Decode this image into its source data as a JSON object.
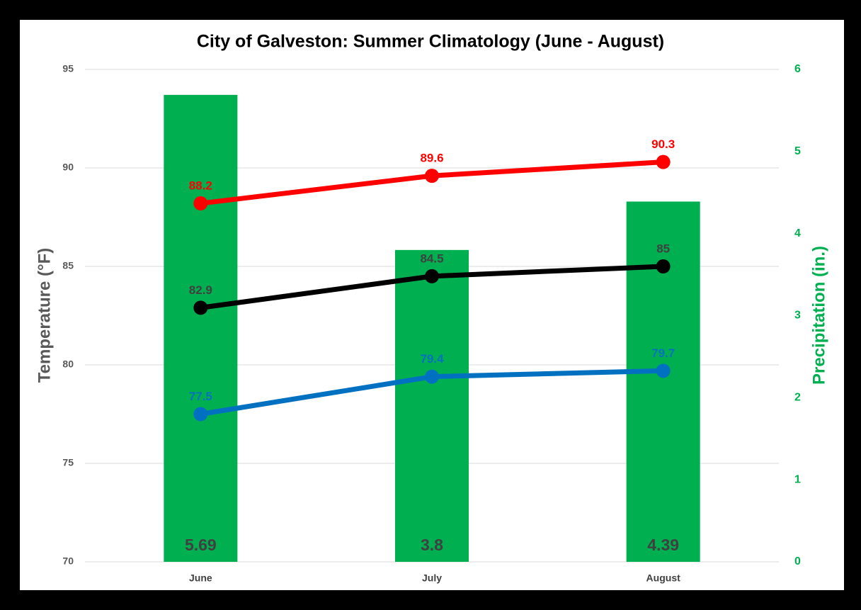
{
  "chart_data": {
    "type": "bar",
    "title": "City of Galveston: Summer Climatology (June - August)",
    "ylabel": "Temperature (°F)",
    "y2label": "Precipitation (in.)",
    "categories": [
      "June",
      "July",
      "August"
    ],
    "ylim": [
      70,
      95
    ],
    "yticks": [
      70,
      75,
      80,
      85,
      90,
      95
    ],
    "y2lim": [
      0,
      6
    ],
    "y2ticks": [
      0,
      1,
      2,
      3,
      4,
      5,
      6
    ],
    "grid": true,
    "series": [
      {
        "type": "bar",
        "axis": "y2",
        "color": "#00b050",
        "values": [
          5.69,
          3.8,
          4.39
        ]
      },
      {
        "type": "line",
        "color": "#ff0000",
        "values": [
          88.2,
          89.6,
          90.3
        ]
      },
      {
        "type": "line",
        "color": "#000000",
        "values": [
          82.9,
          84.5,
          85
        ]
      },
      {
        "type": "line",
        "color": "#0070c0",
        "values": [
          77.5,
          79.4,
          79.7
        ]
      }
    ]
  }
}
